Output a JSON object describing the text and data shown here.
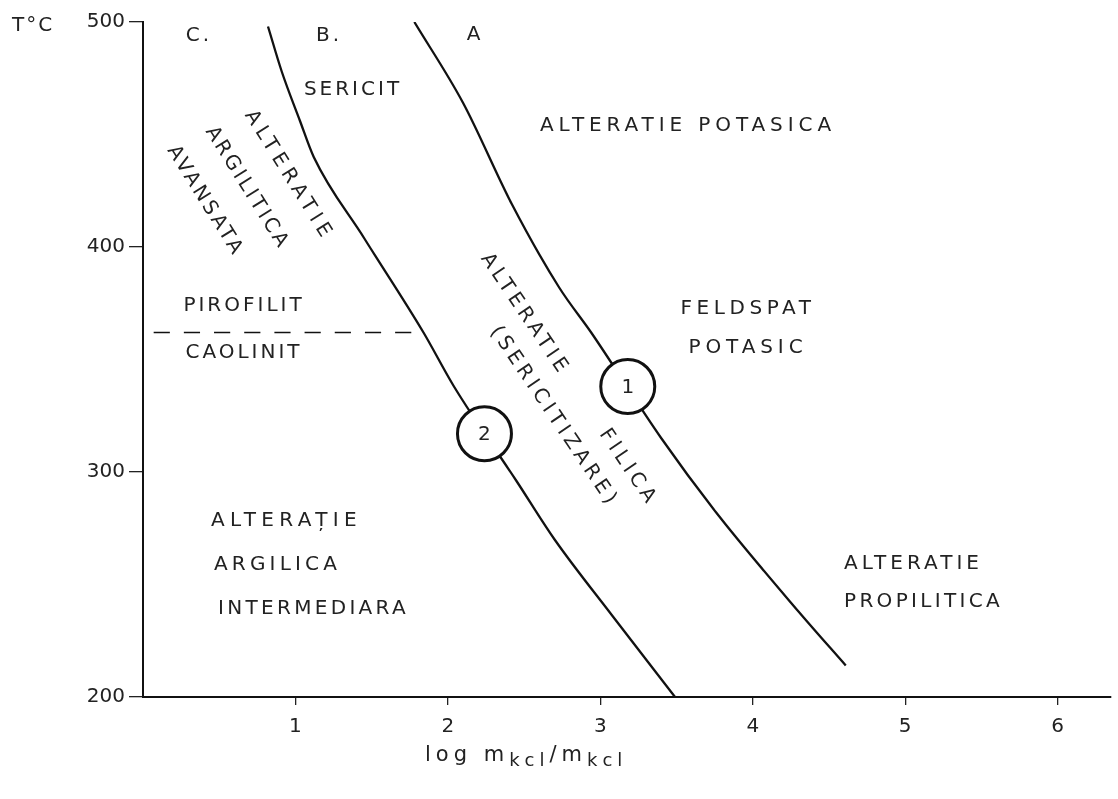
{
  "chart_data": {
    "type": "line",
    "xlabel": "log m$_{kcl}$/m$_{kcl}$",
    "ylabel": "T°C",
    "xlim": [
      0,
      6.35
    ],
    "ylim": [
      200,
      500
    ],
    "xticks": [
      1,
      2,
      3,
      4,
      5,
      6
    ],
    "yticks": [
      200,
      300,
      400,
      500
    ],
    "series": [
      {
        "color": "#111111",
        "x": [
          1.78,
          2.1,
          2.42,
          2.73,
          2.94,
          3.4,
          3.76,
          4.3,
          4.61
        ],
        "values": [
          500,
          464,
          419,
          382,
          362,
          315,
          282,
          238,
          214
        ]
      },
      {
        "color": "#111111",
        "x": [
          0.82,
          0.91,
          1.03,
          1.12,
          1.45,
          1.84,
          2.04,
          2.45,
          2.7,
          3.08,
          3.49
        ],
        "values": [
          498,
          478,
          456,
          440,
          404,
          362,
          338,
          296,
          270,
          236,
          200
        ]
      },
      {
        "color": "#111111",
        "line_style": "dashed",
        "x": [
          0.07,
          1.76
        ],
        "values": [
          362,
          362
        ]
      }
    ],
    "annotations": [
      "C.",
      "B.",
      "A",
      "SERICIT",
      "ALTERATIE\nARGILITICA\nAVANSATA",
      "ALTERATIE POTASICA",
      "PIROFILIT",
      "CAOLINIT",
      "ALTERATIE FILICA\n(SERICITIZARE)",
      "FELDSPAT\nPOTASIC",
      "ALTERAȚIE\nARGILICA\nINTERMEDIARA",
      "ALTERATIE\nPROPILITICA",
      {
        "text": "1",
        "x": 3.18,
        "y": 338
      },
      {
        "text": "2",
        "x": 2.24,
        "y": 317
      }
    ]
  }
}
